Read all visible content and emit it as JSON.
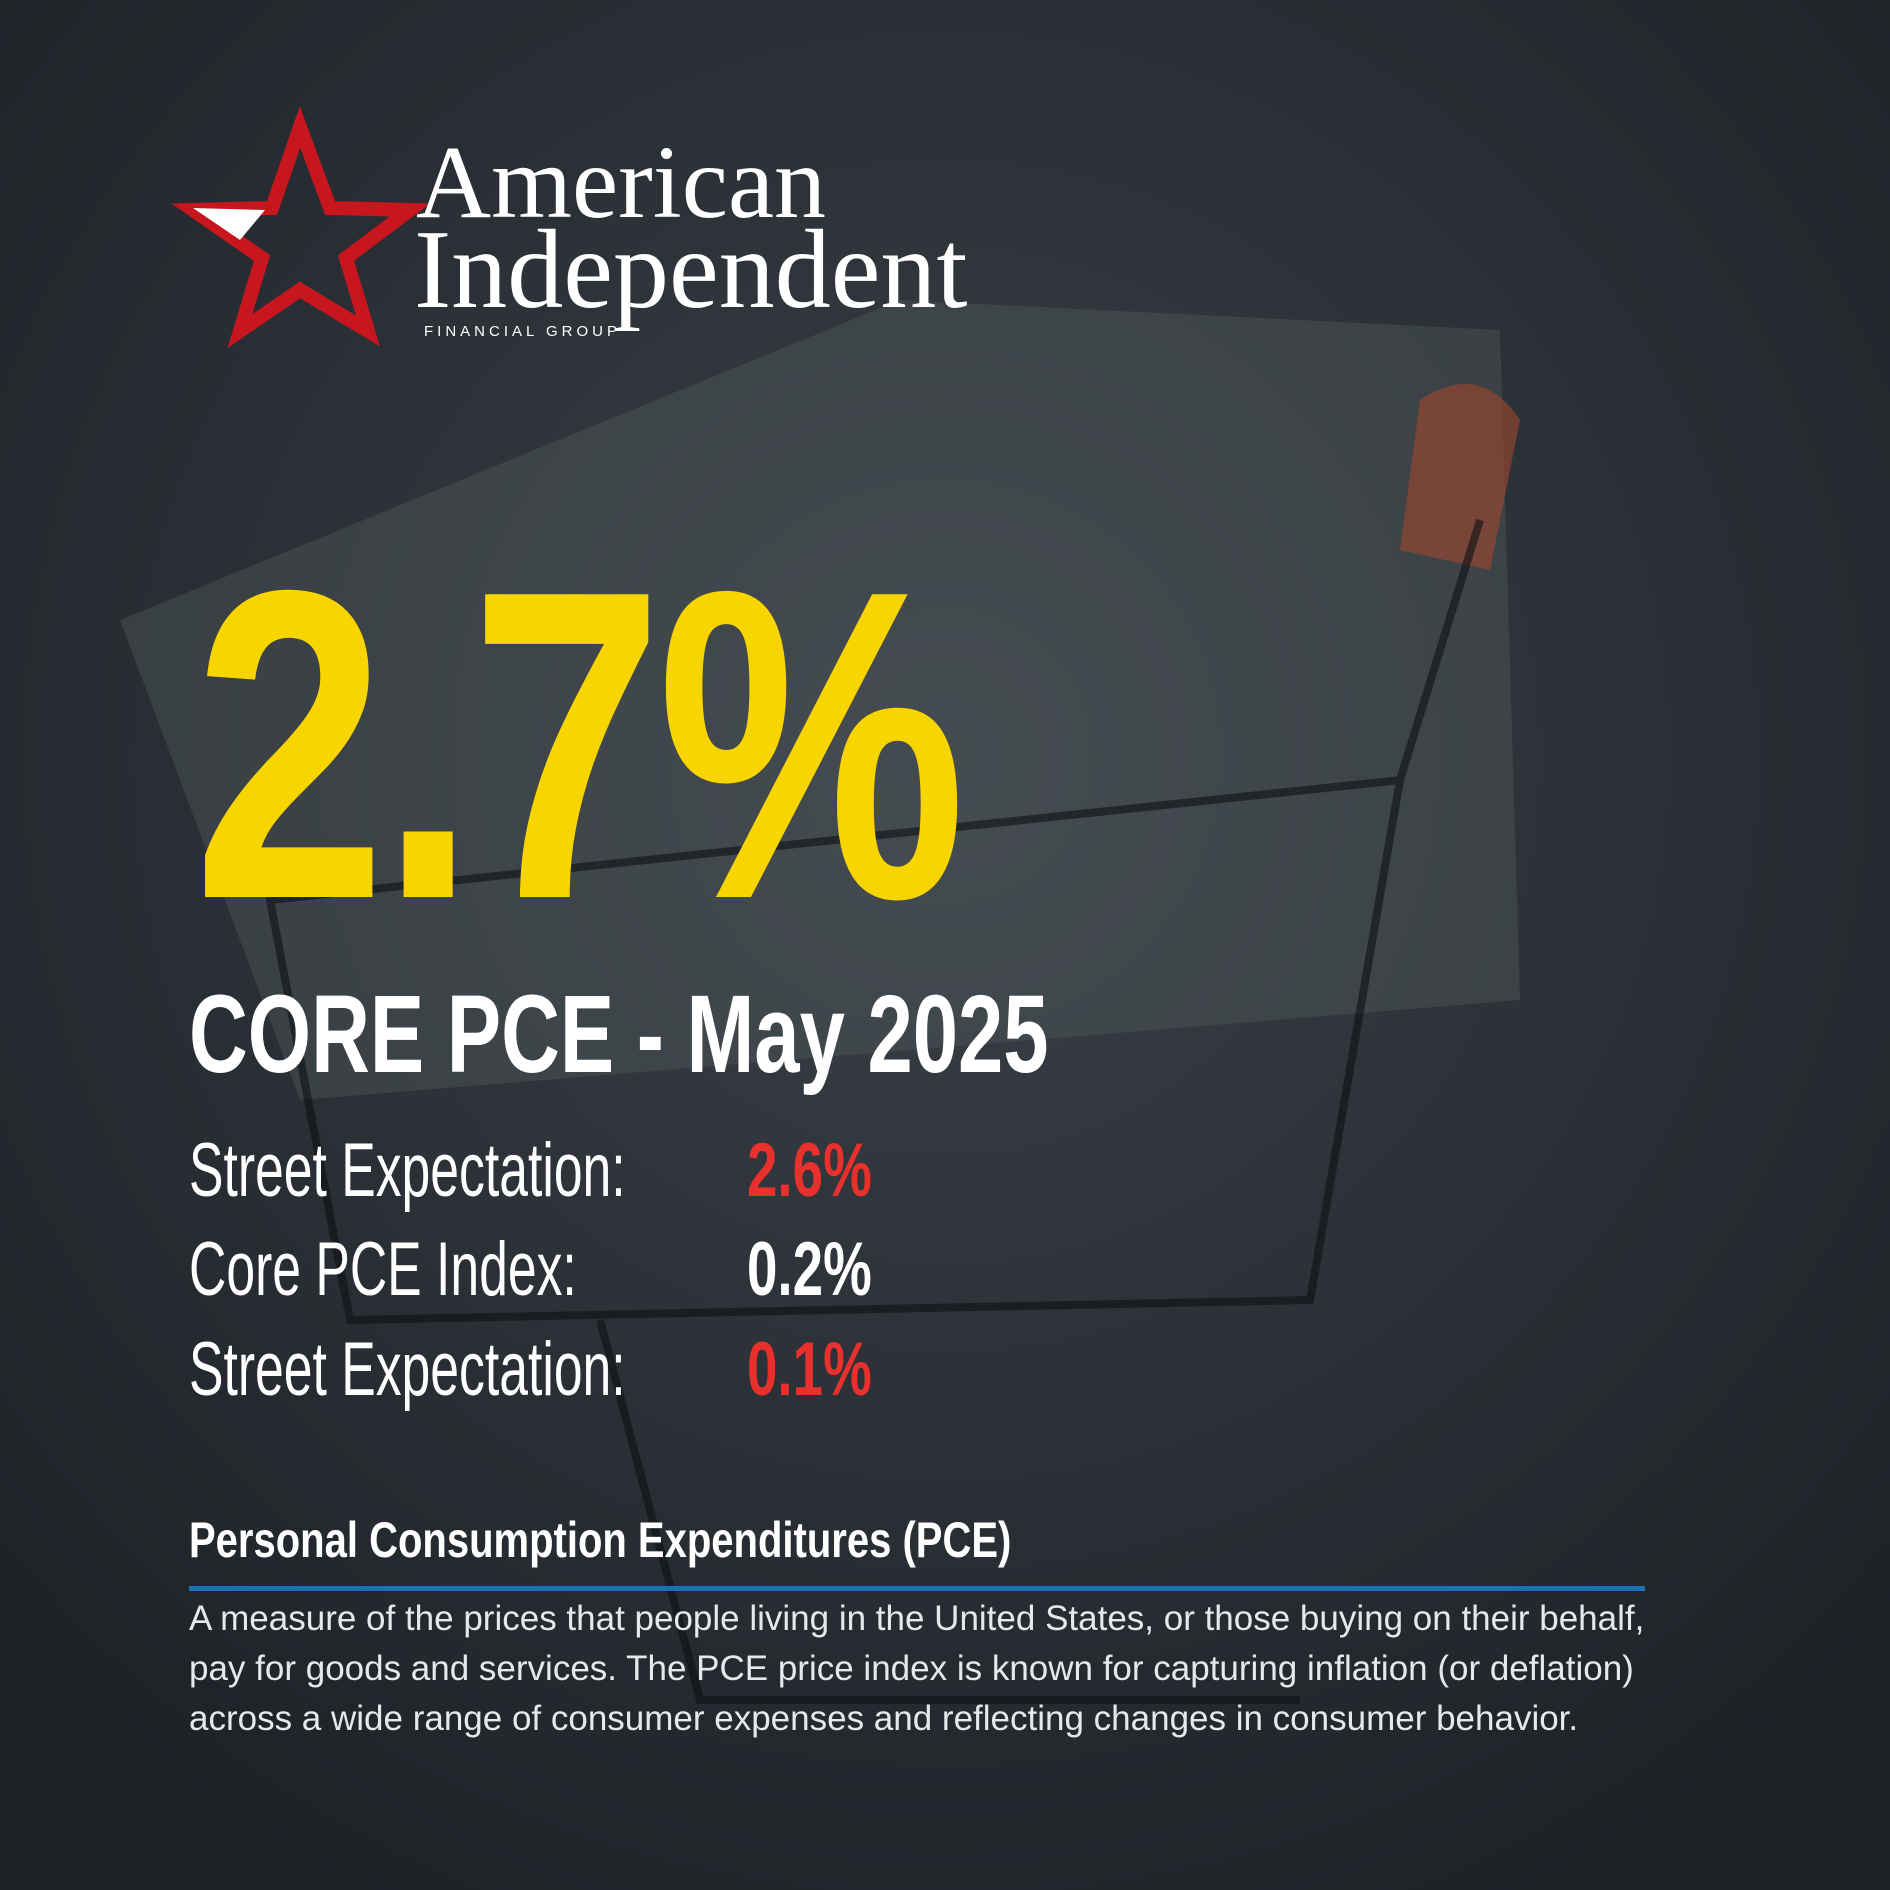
{
  "logo": {
    "line1": "American",
    "line2": "Independent",
    "tagline": "FINANCIAL GROUP"
  },
  "headline": {
    "value": "2.7%",
    "subtitle": "CORE PCE - May 2025"
  },
  "rows": [
    {
      "label": "Street Expectation:",
      "value": "2.6%"
    },
    {
      "label": "Core PCE Index:",
      "value": "0.2%"
    },
    {
      "label": "Street Expectation:",
      "value": "0.1%"
    }
  ],
  "definition": {
    "title": "Personal Consumption Expenditures (PCE)",
    "body": "A measure of the prices that people living in the United States, or those buying on their behalf, pay for goods and services. The PCE price index is known for capturing inflation (or deflation) across a wide range of consumer expenses and reflecting changes in consumer behavior."
  }
}
